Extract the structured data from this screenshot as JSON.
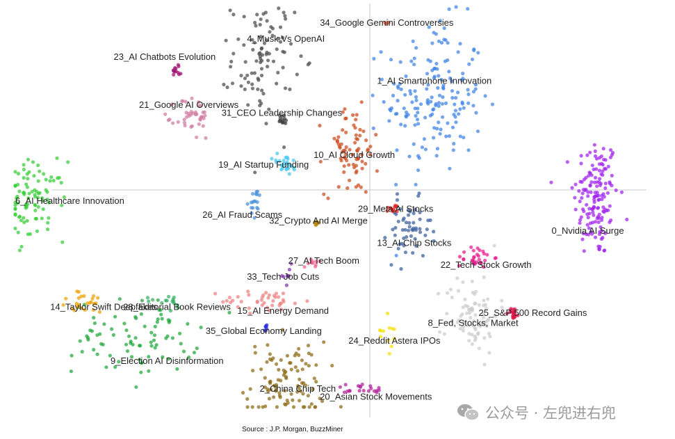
{
  "chart_data": {
    "type": "scatter",
    "title": "",
    "xlabel": "",
    "ylabel": "",
    "xlim": [
      -1,
      1
    ],
    "ylim": [
      -1,
      1
    ],
    "grid": false,
    "clusters": [
      {
        "name": "0_Nvidia AI Surge",
        "color": "#a020f0",
        "x": 0.83,
        "y": 0.05,
        "sx": 0.05,
        "sy": 0.22,
        "n": 150
      },
      {
        "name": "1_AI Smartphone Innovation",
        "color": "#3b82e8",
        "x": 0.32,
        "y": 0.55,
        "sx": 0.11,
        "sy": 0.27,
        "n": 170
      },
      {
        "name": "2_China Chip Tech",
        "color": "#8b6914",
        "x": -0.15,
        "y": -0.88,
        "sx": 0.09,
        "sy": 0.15,
        "n": 100
      },
      {
        "name": "6_AI Healthcare Innovation",
        "color": "#33cc33",
        "x": -0.94,
        "y": 0.03,
        "sx": 0.07,
        "sy": 0.14,
        "n": 90
      },
      {
        "name": "9_Election AI Disinformation",
        "color": "#1fa83a",
        "x": -0.62,
        "y": -0.65,
        "sx": 0.14,
        "sy": 0.13,
        "n": 85
      },
      {
        "name": "4_Musk Vs OpenAI",
        "color": "#4a4a4a",
        "x": -0.22,
        "y": 0.74,
        "sx": 0.07,
        "sy": 0.21,
        "n": 95
      },
      {
        "name": "10_AI Cloud Growth",
        "color": "#cc4a1a",
        "x": 0.06,
        "y": 0.28,
        "sx": 0.06,
        "sy": 0.16,
        "n": 75
      },
      {
        "name": "13_AI Chip Stocks",
        "color": "#3a5e9e",
        "x": 0.24,
        "y": -0.12,
        "sx": 0.05,
        "sy": 0.11,
        "n": 55
      },
      {
        "name": "8_Fed, Stocks, Market",
        "color": "#cccccc",
        "x": 0.44,
        "y": -0.53,
        "sx": 0.06,
        "sy": 0.14,
        "n": 80
      },
      {
        "name": "15_AI Energy Demand",
        "color": "#f08080",
        "x": -0.21,
        "y": -0.47,
        "sx": 0.1,
        "sy": 0.04,
        "n": 40
      },
      {
        "name": "22_Tech Stock Growth",
        "color": "#e8198a",
        "x": 0.45,
        "y": -0.25,
        "sx": 0.04,
        "sy": 0.04,
        "n": 30
      },
      {
        "name": "21_Google AI Overviews",
        "color": "#d07aa0",
        "x": -0.44,
        "y": 0.45,
        "sx": 0.04,
        "sy": 0.08,
        "n": 40
      },
      {
        "name": "19_AI Startup Funding",
        "color": "#40c8f0",
        "x": -0.15,
        "y": 0.21,
        "sx": 0.03,
        "sy": 0.04,
        "n": 25
      },
      {
        "name": "14_Taylor Swift Deepfakes",
        "color": "#f0a000",
        "x": -0.78,
        "y": -0.48,
        "sx": 0.06,
        "sy": 0.04,
        "n": 25
      },
      {
        "name": "25_S&P 500 Record Gains",
        "color": "#e0104a",
        "x": 0.57,
        "y": -0.53,
        "sx": 0.012,
        "sy": 0.02,
        "n": 18
      },
      {
        "name": "20_Asian Stock Movements",
        "color": "#b0209a",
        "x": 0.09,
        "y": -0.91,
        "sx": 0.06,
        "sy": 0.02,
        "n": 20
      },
      {
        "name": "26_AI Fraud Scams",
        "color": "#4a90d9",
        "x": -0.24,
        "y": 0.02,
        "sx": 0.015,
        "sy": 0.05,
        "n": 18
      },
      {
        "name": "29_Meta AI Stocks",
        "color": "#e02020",
        "x": 0.19,
        "y": -0.01,
        "sx": 0.015,
        "sy": 0.015,
        "n": 12
      },
      {
        "name": "32_Crypto And AI Merge",
        "color": "#b8860b",
        "x": -0.05,
        "y": -0.08,
        "sx": 0.006,
        "sy": 0.008,
        "n": 8
      },
      {
        "name": "31_CEO Leadership Changes",
        "color": "#3c3c3c",
        "x": -0.16,
        "y": 0.44,
        "sx": 0.02,
        "sy": 0.02,
        "n": 12
      },
      {
        "name": "23_AI Chatbots Evolution",
        "color": "#a01070",
        "x": -0.49,
        "y": 0.69,
        "sx": 0.01,
        "sy": 0.03,
        "n": 12
      },
      {
        "name": "24_Reddit Astera IPOs",
        "color": "#f0e000",
        "x": 0.18,
        "y": -0.62,
        "sx": 0.02,
        "sy": 0.08,
        "n": 12
      },
      {
        "name": "27_AI Tech Boom",
        "color": "#f06090",
        "x": -0.06,
        "y": -0.28,
        "sx": 0.02,
        "sy": 0.012,
        "n": 10
      },
      {
        "name": "33_Tech Job Cuts",
        "color": "#8030b0",
        "x": -0.15,
        "y": -0.34,
        "sx": 0.02,
        "sy": 0.04,
        "n": 8
      },
      {
        "name": "34_Google Gemini Controversies",
        "color": "#f05030",
        "x": 0.17,
        "y": 0.92,
        "sx": 0.01,
        "sy": 0.01,
        "n": 3
      },
      {
        "name": "28_Editorial Book Reviews",
        "color": "#30b060",
        "x": -0.52,
        "y": -0.47,
        "sx": 0.05,
        "sy": 0.03,
        "n": 15
      },
      {
        "name": "35_Global Economy Landing",
        "color": "#3030e0",
        "x": -0.21,
        "y": -0.6,
        "sx": 0.008,
        "sy": 0.012,
        "n": 8
      }
    ],
    "labels": [
      {
        "text": "34_Google Gemini Controversies",
        "x": -0.04,
        "y": 0.92
      },
      {
        "text": "4_Musk Vs OpenAI",
        "x": -0.27,
        "y": 0.84
      },
      {
        "text": "23_AI Chatbots Evolution",
        "x": -0.69,
        "y": 0.75
      },
      {
        "text": "1_AI Smartphone Innovation",
        "x": 0.14,
        "y": 0.63
      },
      {
        "text": "21_Google AI Overviews",
        "x": -0.61,
        "y": 0.51
      },
      {
        "text": "31_CEO Leadership Changes",
        "x": -0.35,
        "y": 0.47
      },
      {
        "text": "10_AI Cloud Growth",
        "x": -0.06,
        "y": 0.26
      },
      {
        "text": "19_AI Startup Funding",
        "x": -0.36,
        "y": 0.21
      },
      {
        "text": "6_AI Healthcare Innovation",
        "x": -1.0,
        "y": 0.03
      },
      {
        "text": "29_Meta AI Stocks",
        "x": 0.08,
        "y": -0.01
      },
      {
        "text": "26_AI Fraud Scams",
        "x": -0.41,
        "y": -0.04
      },
      {
        "text": "32_Crypto And AI Merge",
        "x": -0.2,
        "y": -0.07
      },
      {
        "text": "0_Nvidia AI Surge",
        "x": 0.69,
        "y": -0.12
      },
      {
        "text": "13_AI Chip Stocks",
        "x": 0.14,
        "y": -0.18
      },
      {
        "text": "27_AI Tech Boom",
        "x": -0.14,
        "y": -0.27
      },
      {
        "text": "22_Tech Stock Growth",
        "x": 0.34,
        "y": -0.29
      },
      {
        "text": "33_Tech Job Cuts",
        "x": -0.27,
        "y": -0.35
      },
      {
        "text": "14_Taylor Swift Deepfakes",
        "x": -0.89,
        "y": -0.5
      },
      {
        "text": "28_Editorial Book Reviews",
        "x": -0.66,
        "y": -0.5
      },
      {
        "text": "15_AI Energy Demand",
        "x": -0.3,
        "y": -0.52
      },
      {
        "text": "25_S&P 500 Record Gains",
        "x": 0.46,
        "y": -0.53
      },
      {
        "text": "8_Fed, Stocks, Market",
        "x": 0.3,
        "y": -0.58
      },
      {
        "text": "35_Global Economy Landing",
        "x": -0.4,
        "y": -0.62
      },
      {
        "text": "24_Reddit Astera IPOs",
        "x": 0.05,
        "y": -0.67
      },
      {
        "text": "9_Election AI Disinformation",
        "x": -0.7,
        "y": -0.77
      },
      {
        "text": "2_China Chip Tech",
        "x": -0.23,
        "y": -0.91
      },
      {
        "text": "20_Asian Stock Movements",
        "x": -0.04,
        "y": -0.95
      }
    ]
  },
  "source": "Source : J.P. Morgan, BuzzMiner",
  "watermark": {
    "text": "公众号 · 左兜进右兜",
    "icon": "wechat-icon"
  }
}
